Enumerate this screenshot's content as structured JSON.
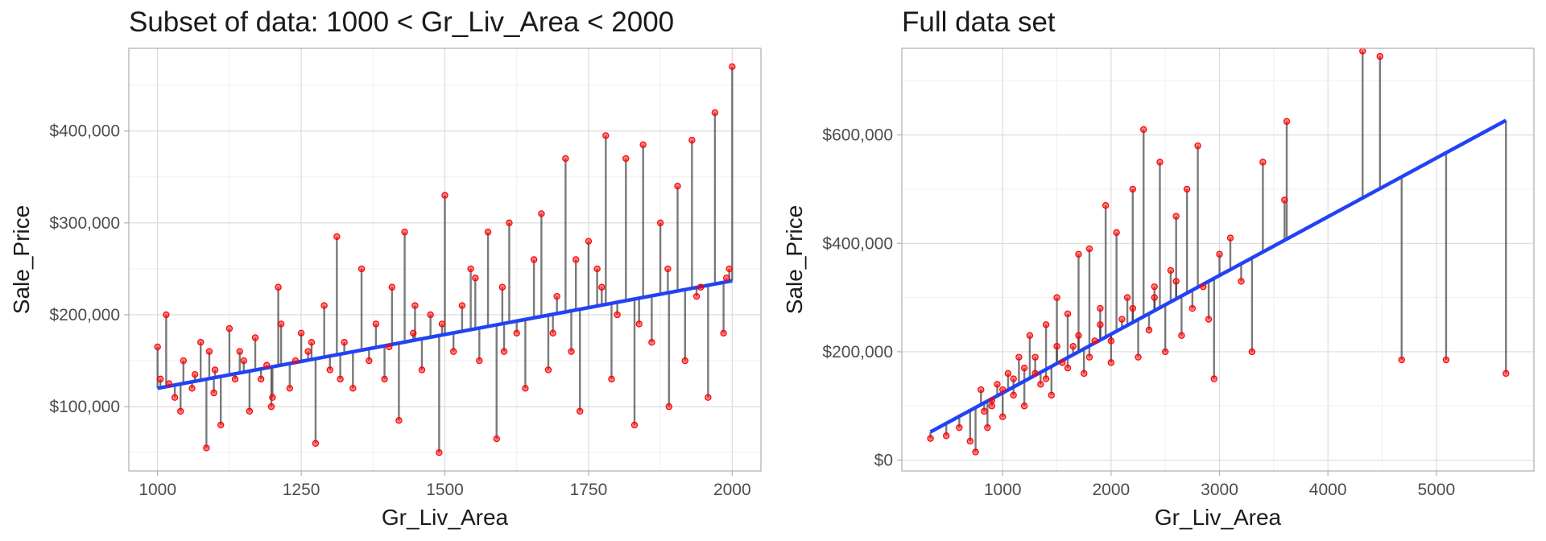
{
  "colors": {
    "point": "#ff0000",
    "segment": "#333333",
    "fit_line": "#2143f5",
    "grid_major": "#dcdcdc",
    "grid_minor": "#efefef",
    "panel_border": "#b3b3b3"
  },
  "chart_data": [
    {
      "type": "scatter",
      "title": "Subset of data: 1000 < Gr_Liv_Area < 2000",
      "xlabel": "Gr_Liv_Area",
      "ylabel": "Sale_Price",
      "xlim": [
        950,
        2050
      ],
      "ylim": [
        30000,
        490000
      ],
      "x_ticks": [
        1000,
        1250,
        1500,
        1750,
        2000
      ],
      "x_tick_labels": [
        "1000",
        "1250",
        "1500",
        "1750",
        "2000"
      ],
      "y_ticks": [
        100000,
        200000,
        300000,
        400000
      ],
      "y_tick_labels": [
        "$100,000",
        "$200,000",
        "$300,000",
        "$400,000"
      ],
      "grid": true,
      "fit_line": {
        "x": [
          1000,
          2000
        ],
        "y": [
          120000,
          237000
        ]
      },
      "x": [
        1005,
        1015,
        1030,
        1045,
        1060,
        1075,
        1085,
        1090,
        1100,
        1110,
        1125,
        1135,
        1150,
        1160,
        1170,
        1180,
        1190,
        1200,
        1210,
        1215,
        1230,
        1240,
        1250,
        1262,
        1275,
        1290,
        1300,
        1312,
        1325,
        1340,
        1355,
        1368,
        1380,
        1395,
        1408,
        1420,
        1430,
        1445,
        1460,
        1475,
        1490,
        1500,
        1515,
        1530,
        1545,
        1560,
        1575,
        1590,
        1600,
        1612,
        1625,
        1640,
        1655,
        1668,
        1680,
        1695,
        1710,
        1720,
        1735,
        1750,
        1765,
        1780,
        1790,
        1800,
        1815,
        1830,
        1845,
        1860,
        1875,
        1890,
        1905,
        1918,
        1930,
        1945,
        1958,
        1970,
        1985,
        1995,
        2000,
        1000,
        1020,
        1040,
        1065,
        1098,
        1143,
        1198,
        1268,
        1318,
        1403,
        1448,
        1495,
        1553,
        1603,
        1688,
        1728,
        1773,
        1838,
        1888,
        1938,
        1990
      ],
      "y": [
        130000,
        200000,
        110000,
        150000,
        120000,
        170000,
        55000,
        160000,
        140000,
        80000,
        185000,
        130000,
        150000,
        95000,
        175000,
        130000,
        145000,
        110000,
        230000,
        190000,
        120000,
        150000,
        180000,
        160000,
        60000,
        210000,
        140000,
        285000,
        170000,
        120000,
        250000,
        150000,
        190000,
        130000,
        230000,
        85000,
        290000,
        180000,
        140000,
        200000,
        50000,
        330000,
        160000,
        210000,
        250000,
        150000,
        290000,
        65000,
        230000,
        300000,
        180000,
        120000,
        260000,
        310000,
        140000,
        220000,
        370000,
        160000,
        95000,
        280000,
        250000,
        395000,
        130000,
        200000,
        370000,
        80000,
        385000,
        170000,
        300000,
        100000,
        340000,
        150000,
        390000,
        230000,
        110000,
        420000,
        180000,
        250000,
        470000,
        165000,
        125000,
        95000,
        135000,
        115000,
        160000,
        100000,
        170000,
        130000,
        165000,
        210000,
        190000,
        240000,
        160000,
        180000,
        260000,
        230000,
        190000,
        250000,
        220000,
        240000
      ]
    },
    {
      "type": "scatter",
      "title": "Full data set",
      "xlabel": "Gr_Liv_Area",
      "ylabel": "Sale_Price",
      "xlim": [
        70,
        5900
      ],
      "ylim": [
        -20000,
        760000
      ],
      "x_ticks": [
        1000,
        2000,
        3000,
        4000,
        5000
      ],
      "x_tick_labels": [
        "1000",
        "2000",
        "3000",
        "4000",
        "5000"
      ],
      "y_ticks": [
        0,
        200000,
        400000,
        600000
      ],
      "y_tick_labels": [
        "$0",
        "$200,000",
        "$400,000",
        "$600,000"
      ],
      "grid": true,
      "fit_line": {
        "x": [
          334,
          5642
        ],
        "y": [
          52000,
          627000
        ]
      },
      "x": [
        334,
        480,
        600,
        700,
        750,
        800,
        830,
        860,
        900,
        950,
        1000,
        1050,
        1100,
        1150,
        1200,
        1250,
        1300,
        1350,
        1400,
        1450,
        1500,
        1550,
        1600,
        1650,
        1700,
        1750,
        1800,
        1850,
        1900,
        1950,
        2000,
        2050,
        2100,
        2150,
        2200,
        2250,
        2300,
        2350,
        2400,
        2450,
        2500,
        2550,
        2600,
        2650,
        2700,
        2750,
        2800,
        2850,
        2900,
        2950,
        3000,
        3100,
        3200,
        3300,
        3400,
        3600,
        3620,
        4320,
        4480,
        4680,
        5090,
        5642,
        900,
        1000,
        1100,
        1200,
        1300,
        1400,
        1500,
        1600,
        1700,
        1800,
        1900,
        2000,
        2200,
        2400,
        2600
      ],
      "y": [
        40000,
        45000,
        60000,
        35000,
        15000,
        130000,
        90000,
        60000,
        100000,
        140000,
        80000,
        160000,
        120000,
        190000,
        100000,
        230000,
        160000,
        140000,
        250000,
        120000,
        300000,
        180000,
        270000,
        210000,
        380000,
        160000,
        390000,
        220000,
        280000,
        470000,
        180000,
        420000,
        260000,
        300000,
        500000,
        190000,
        610000,
        240000,
        320000,
        550000,
        200000,
        350000,
        450000,
        230000,
        500000,
        280000,
        580000,
        320000,
        260000,
        150000,
        380000,
        410000,
        330000,
        200000,
        550000,
        480000,
        625000,
        755000,
        745000,
        185000,
        185000,
        160000,
        110000,
        130000,
        150000,
        170000,
        190000,
        150000,
        210000,
        170000,
        230000,
        190000,
        250000,
        220000,
        280000,
        300000,
        330000
      ]
    }
  ]
}
